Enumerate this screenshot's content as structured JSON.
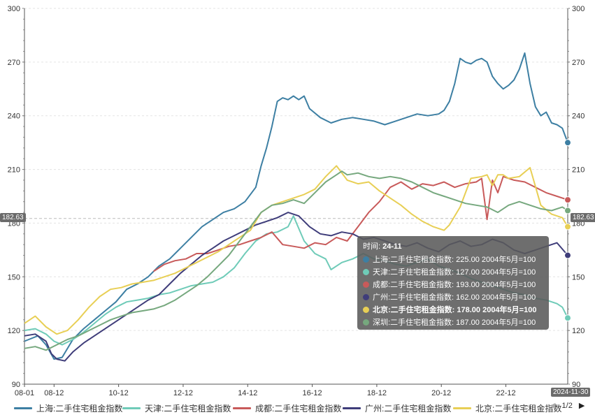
{
  "chart_data": {
    "type": "line",
    "title": "",
    "ylim": [
      90,
      300
    ],
    "y_ticks": [
      90,
      120,
      150,
      180,
      210,
      240,
      270,
      300
    ],
    "x_tick_labels": [
      "08-01",
      "08-12",
      "10-12",
      "12-12",
      "14-12",
      "16-12",
      "18-12",
      "20-12",
      "22-12"
    ],
    "x_tick_months": [
      0,
      11,
      35,
      59,
      83,
      107,
      131,
      155,
      179
    ],
    "x_month_range": [
      0,
      202
    ],
    "series": [
      {
        "name": "上海:二手住宅租金指数",
        "color": "#3d7fa3",
        "x": [
          0,
          5,
          8,
          11,
          14,
          18,
          22,
          26,
          30,
          34,
          38,
          42,
          46,
          50,
          54,
          58,
          62,
          66,
          70,
          74,
          78,
          82,
          86,
          88,
          90,
          92,
          94,
          96,
          98,
          100,
          102,
          104,
          106,
          110,
          114,
          118,
          122,
          126,
          130,
          134,
          138,
          142,
          146,
          150,
          154,
          156,
          158,
          160,
          162,
          164,
          166,
          168,
          170,
          172,
          174,
          176,
          178,
          180,
          182,
          184,
          186,
          188,
          190,
          192,
          194,
          196,
          198,
          200,
          202
        ],
        "y": [
          114,
          117,
          112,
          104,
          105,
          115,
          121,
          126,
          131,
          136,
          143,
          146,
          150,
          156,
          160,
          166,
          172,
          178,
          182,
          186,
          188,
          192,
          200,
          212,
          222,
          234,
          248,
          250,
          249,
          251,
          249,
          251,
          244,
          239,
          236,
          238,
          239,
          238,
          237,
          235,
          237,
          239,
          241,
          240,
          241,
          243,
          248,
          258,
          272,
          270,
          269,
          271,
          272,
          270,
          262,
          258,
          255,
          257,
          260,
          266,
          275,
          258,
          245,
          240,
          242,
          236,
          235,
          233,
          225
        ]
      },
      {
        "name": "天津:二手住宅租金指数",
        "color": "#6fcbb8",
        "x": [
          0,
          4,
          8,
          11,
          14,
          18,
          22,
          26,
          30,
          34,
          38,
          42,
          46,
          50,
          54,
          58,
          62,
          66,
          70,
          74,
          78,
          82,
          86,
          90,
          94,
          98,
          100,
          104,
          108,
          112,
          114,
          118,
          122,
          126,
          130,
          134,
          138,
          142,
          146,
          150,
          154,
          158,
          162,
          166,
          170,
          174,
          178,
          182,
          186,
          190,
          194,
          198,
          200,
          202
        ],
        "y": [
          120,
          121,
          118,
          114,
          112,
          115,
          119,
          124,
          129,
          133,
          136,
          137,
          138,
          140,
          141,
          143,
          145,
          146,
          147,
          150,
          155,
          163,
          170,
          174,
          175,
          178,
          184,
          170,
          163,
          160,
          154,
          158,
          160,
          163,
          160,
          159,
          157,
          156,
          158,
          160,
          156,
          154,
          152,
          149,
          147,
          145,
          143,
          141,
          140,
          138,
          137,
          135,
          133,
          127
        ]
      },
      {
        "name": "成都:二手住宅租金指数",
        "color": "#c85a5a",
        "x": [
          48,
          52,
          56,
          60,
          64,
          68,
          72,
          76,
          80,
          84,
          88,
          92,
          96,
          100,
          104,
          108,
          112,
          116,
          120,
          124,
          128,
          132,
          136,
          140,
          144,
          148,
          152,
          156,
          160,
          164,
          168,
          170,
          172,
          174,
          176,
          178,
          182,
          186,
          190,
          194,
          198,
          202
        ],
        "y": [
          153,
          157,
          159,
          160,
          163,
          163,
          165,
          167,
          168,
          170,
          172,
          175,
          168,
          167,
          166,
          169,
          168,
          172,
          170,
          178,
          186,
          192,
          200,
          203,
          199,
          202,
          201,
          203,
          200,
          202,
          203,
          205,
          182,
          204,
          197,
          206,
          204,
          203,
          200,
          197,
          195,
          193
        ]
      },
      {
        "name": "广州:二手住宅租金指数",
        "color": "#3f3d7a",
        "x": [
          0,
          4,
          8,
          10,
          12,
          15,
          18,
          22,
          26,
          30,
          34,
          38,
          42,
          46,
          50,
          54,
          58,
          62,
          66,
          70,
          74,
          78,
          82,
          86,
          90,
          94,
          98,
          102,
          106,
          110,
          114,
          118,
          122,
          126,
          130,
          134,
          138,
          142,
          146,
          150,
          154,
          158,
          162,
          166,
          170,
          174,
          178,
          182,
          186,
          190,
          194,
          198,
          202
        ],
        "y": [
          117,
          118,
          114,
          107,
          104,
          103,
          108,
          113,
          117,
          121,
          125,
          129,
          133,
          137,
          140,
          146,
          152,
          157,
          162,
          166,
          170,
          173,
          176,
          179,
          181,
          183,
          186,
          184,
          178,
          174,
          173,
          175,
          174,
          171,
          172,
          170,
          168,
          167,
          169,
          166,
          164,
          168,
          170,
          167,
          168,
          171,
          169,
          165,
          163,
          165,
          167,
          169,
          162
        ]
      },
      {
        "name": "北京:二手住宅租金指数",
        "color": "#e8cf55",
        "x": [
          0,
          4,
          8,
          12,
          16,
          20,
          24,
          28,
          32,
          36,
          40,
          44,
          48,
          52,
          56,
          60,
          64,
          68,
          72,
          76,
          80,
          84,
          88,
          92,
          96,
          100,
          104,
          108,
          112,
          116,
          120,
          124,
          128,
          132,
          136,
          140,
          144,
          148,
          152,
          156,
          158,
          160,
          162,
          166,
          170,
          172,
          174,
          176,
          178,
          180,
          184,
          188,
          192,
          196,
          200,
          202
        ],
        "y": [
          124,
          128,
          122,
          118,
          120,
          126,
          133,
          139,
          143,
          144,
          146,
          147,
          148,
          150,
          152,
          155,
          158,
          161,
          164,
          168,
          172,
          176,
          186,
          190,
          192,
          194,
          196,
          199,
          206,
          212,
          204,
          202,
          203,
          198,
          194,
          190,
          185,
          181,
          178,
          176,
          179,
          184,
          189,
          205,
          206,
          207,
          201,
          207,
          207,
          205,
          206,
          211,
          190,
          185,
          183,
          178
        ]
      },
      {
        "name": "深圳:二手住宅租金指数",
        "color": "#76a87e",
        "x": [
          0,
          4,
          8,
          12,
          16,
          20,
          24,
          28,
          32,
          36,
          40,
          44,
          48,
          52,
          56,
          60,
          64,
          68,
          72,
          76,
          80,
          84,
          88,
          92,
          96,
          100,
          104,
          108,
          112,
          116,
          118,
          120,
          124,
          128,
          132,
          136,
          140,
          144,
          148,
          152,
          156,
          160,
          164,
          168,
          172,
          176,
          180,
          184,
          188,
          192,
          196,
          200,
          202
        ],
        "y": [
          110,
          111,
          109,
          112,
          115,
          117,
          120,
          123,
          126,
          128,
          130,
          131,
          132,
          134,
          137,
          141,
          145,
          150,
          156,
          162,
          170,
          178,
          186,
          190,
          191,
          193,
          191,
          197,
          203,
          207,
          209,
          207,
          208,
          206,
          205,
          206,
          205,
          203,
          200,
          197,
          195,
          193,
          191,
          190,
          189,
          186,
          190,
          192,
          190,
          188,
          187,
          189,
          187
        ]
      }
    ],
    "legend_position": "bottom",
    "grid": true
  },
  "left_badge": "182.63",
  "right_badge": "182.63",
  "time_badge": "2024-11-30",
  "tooltip": {
    "time_label": "时间: ",
    "time_value": "24-11",
    "rows": [
      {
        "text": "上海:二手住宅租金指数: 225.00  2004年5月=100",
        "color": "#3d7fa3",
        "bold": false
      },
      {
        "text": "天津:二手住宅租金指数: 127.00  2004年5月=100",
        "color": "#6fcbb8",
        "bold": false
      },
      {
        "text": "成都:二手住宅租金指数: 193.00  2004年5月=100",
        "color": "#c85a5a",
        "bold": false
      },
      {
        "text": "广州:二手住宅租金指数: 162.00  2004年5月=100",
        "color": "#3f3d7a",
        "bold": false
      },
      {
        "text": "北京:二手住宅租金指数: 178.00  2004年5月=100",
        "color": "#e8cf55",
        "bold": true
      },
      {
        "text": "深圳:二手住宅租金指数: 187.00  2004年5月=100",
        "color": "#76a87e",
        "bold": false
      }
    ]
  },
  "legend": {
    "items": [
      {
        "label": "上海:二手住宅租金指数",
        "color": "#3d7fa3"
      },
      {
        "label": "天津:二手住宅租金指数",
        "color": "#6fcbb8"
      },
      {
        "label": "成都:二手住宅租金指数",
        "color": "#c85a5a"
      },
      {
        "label": "广州:二手住宅租金指数",
        "color": "#3f3d7a"
      },
      {
        "label": "北京:二手住宅租金指数",
        "color": "#e8cf55"
      }
    ],
    "page": "1/2",
    "prev_icon": "triangle-left-icon",
    "next_icon": "triangle-right-icon"
  }
}
